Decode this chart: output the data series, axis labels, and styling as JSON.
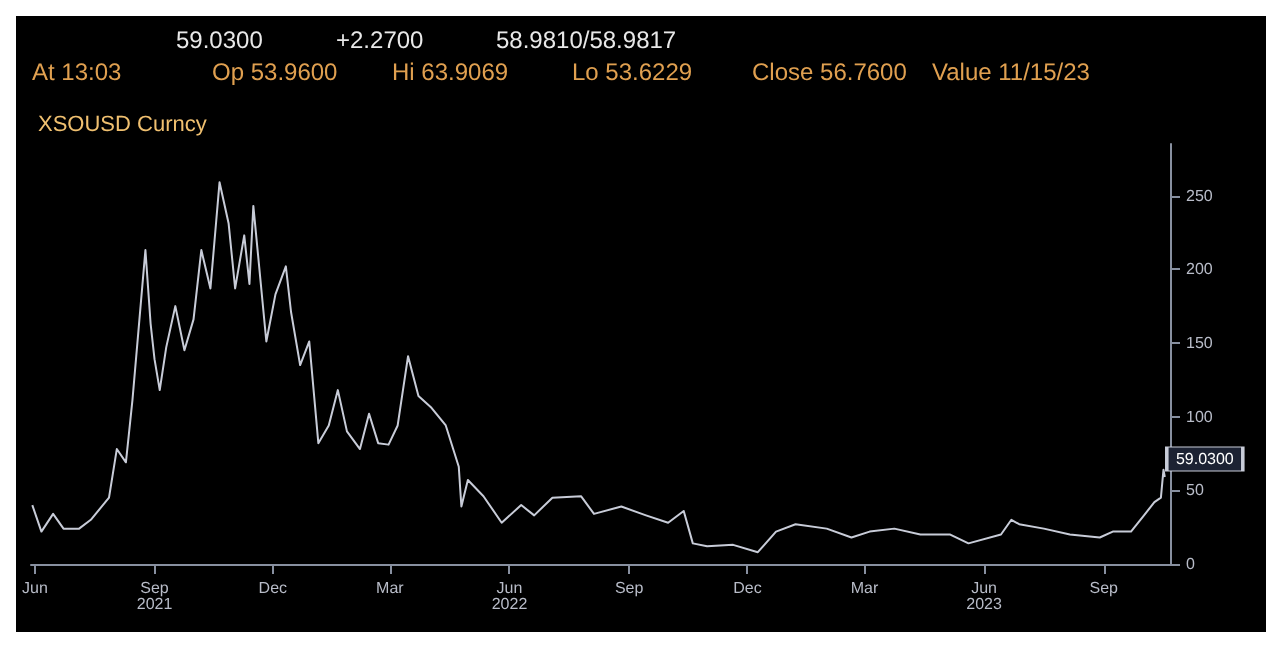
{
  "chart_data": {
    "type": "line",
    "title": "XSOUSD Curncy",
    "annotations": [
      "59.0300",
      "+2.2700",
      "58.9810/58.9817",
      "At 13:03",
      "Op 53.9600",
      "Hi 63.9069",
      "Lo 53.6229",
      "Close 56.7600",
      "Value 11/15/23",
      {
        "text": "59.0300",
        "x": "2023-10-18",
        "y": 59.03
      }
    ],
    "x": [
      "2021-05-30",
      "2021-06-06",
      "2021-06-15",
      "2021-06-23",
      "2021-07-05",
      "2021-07-14",
      "2021-07-28",
      "2021-08-03",
      "2021-08-10",
      "2021-08-15",
      "2021-08-25",
      "2021-08-29",
      "2021-09-01",
      "2021-09-05",
      "2021-09-10",
      "2021-09-17",
      "2021-09-24",
      "2021-10-01",
      "2021-10-07",
      "2021-10-14",
      "2021-10-21",
      "2021-10-28",
      "2021-11-02",
      "2021-11-09",
      "2021-11-13",
      "2021-11-16",
      "2021-11-26",
      "2021-12-03",
      "2021-12-11",
      "2021-12-15",
      "2021-12-22",
      "2021-12-29",
      "2022-01-05",
      "2022-01-13",
      "2022-01-20",
      "2022-01-27",
      "2022-02-06",
      "2022-02-13",
      "2022-02-20",
      "2022-02-28",
      "2022-03-07",
      "2022-03-15",
      "2022-03-23",
      "2022-04-02",
      "2022-04-13",
      "2022-04-23",
      "2022-04-25",
      "2022-04-30",
      "2022-05-12",
      "2022-05-26",
      "2022-06-10",
      "2022-06-20",
      "2022-07-04",
      "2022-07-26",
      "2022-08-05",
      "2022-08-26",
      "2022-09-14",
      "2022-10-01",
      "2022-10-13",
      "2022-10-20",
      "2022-10-31",
      "2022-11-20",
      "2022-12-09",
      "2022-12-23",
      "2023-01-07",
      "2023-01-31",
      "2023-02-19",
      "2023-03-05",
      "2023-03-24",
      "2023-04-13",
      "2023-05-06",
      "2023-05-20",
      "2023-06-14",
      "2023-06-22",
      "2023-06-28",
      "2023-07-17",
      "2023-08-06",
      "2023-08-29",
      "2023-09-08",
      "2023-09-22",
      "2023-10-02",
      "2023-10-10",
      "2023-10-15",
      "2023-10-17",
      "2023-10-18"
    ],
    "series": [
      {
        "color": "#c8ccd8",
        "values": [
          40,
          22,
          34,
          24,
          24,
          30,
          45,
          78,
          69,
          111,
          213,
          163,
          139,
          118,
          147,
          175,
          145,
          166,
          213,
          187,
          259,
          231,
          187,
          223,
          190,
          243,
          151,
          183,
          202,
          171,
          135,
          151,
          82,
          94,
          118,
          90,
          78,
          102,
          82,
          81,
          94,
          141,
          114,
          106,
          94,
          66,
          39,
          57,
          46,
          28,
          40,
          33,
          45,
          46,
          34,
          39,
          33,
          28,
          36,
          14,
          12,
          13,
          8,
          22,
          27,
          24,
          18,
          22,
          24,
          20,
          20,
          14,
          20,
          30,
          27,
          24,
          20,
          18,
          22,
          22,
          33,
          42,
          45,
          64,
          59.03
        ]
      }
    ],
    "xlim": [
      "2021-05-29",
      "2023-10-22"
    ],
    "xticks": [
      {
        "value": "2021-06-01",
        "label": "Jun"
      },
      {
        "value": "2021-09-01",
        "label": "Sep\n2021"
      },
      {
        "value": "2021-12-01",
        "label": "Dec"
      },
      {
        "value": "2022-03-01",
        "label": "Mar"
      },
      {
        "value": "2022-06-01",
        "label": "Jun\n2022"
      },
      {
        "value": "2022-09-01",
        "label": "Sep"
      },
      {
        "value": "2022-12-01",
        "label": "Dec"
      },
      {
        "value": "2023-03-01",
        "label": "Mar"
      },
      {
        "value": "2023-06-01",
        "label": "Jun\n2023"
      },
      {
        "value": "2023-09-01",
        "label": "Sep"
      }
    ],
    "ylim": [
      0,
      285
    ],
    "yticks": [
      0,
      50,
      100,
      150,
      200,
      250
    ],
    "grid": false,
    "marker": "none",
    "line_style": "solid"
  }
}
